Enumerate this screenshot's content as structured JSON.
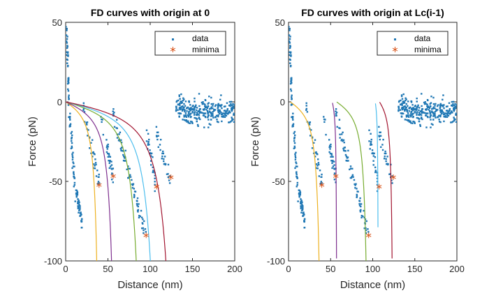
{
  "chart_data": [
    {
      "type": "scatter",
      "title": "FD curves with origin at 0",
      "xlabel": "Distance (nm)",
      "ylabel": "Force (pN)",
      "xlim": [
        0,
        200
      ],
      "ylim": [
        -100,
        50
      ],
      "xticks": [
        0,
        50,
        100,
        150,
        200
      ],
      "yticks": [
        50,
        0,
        -50,
        -100
      ],
      "grid": false,
      "legend": {
        "position": "top-right",
        "entries": [
          "data",
          "minima"
        ]
      },
      "series": [
        {
          "name": "data",
          "marker": "dot",
          "color": "#1f77b4"
        },
        {
          "name": "minima",
          "marker": "asterisk",
          "color": "#d95319",
          "x": [
            39.5,
            56.2,
            95.2,
            107.6,
            124.5
          ],
          "y": [
            -52.3,
            -46.7,
            -83.9,
            -53.3,
            -47.4
          ]
        }
      ],
      "model_curves": [
        {
          "color": "#edb120",
          "origin": 0,
          "lc": 44
        },
        {
          "color": "#7e2f8e",
          "origin": 0,
          "lc": 65
        },
        {
          "color": "#77ac30",
          "origin": 0,
          "lc": 100
        },
        {
          "color": "#4dbeee",
          "origin": 0,
          "lc": 120
        },
        {
          "color": "#a2142f",
          "origin": 0,
          "lc": 142
        }
      ]
    },
    {
      "type": "scatter",
      "title": "FD curves with origin at Lc(i-1)",
      "xlabel": "Distance (nm)",
      "ylabel": "Force (pN)",
      "xlim": [
        0,
        200
      ],
      "ylim": [
        -100,
        50
      ],
      "xticks": [
        0,
        50,
        100,
        150,
        200
      ],
      "yticks": [
        50,
        0,
        -50,
        -100
      ],
      "grid": false,
      "legend": {
        "position": "top-right",
        "entries": [
          "data",
          "minima"
        ]
      },
      "series": [
        {
          "name": "data",
          "marker": "dot",
          "color": "#1f77b4"
        },
        {
          "name": "minima",
          "marker": "asterisk",
          "color": "#d95319",
          "x": [
            39.5,
            56.2,
            95.2,
            107.6,
            124.5
          ],
          "y": [
            -52.3,
            -46.7,
            -83.9,
            -53.3,
            -47.4
          ]
        }
      ],
      "model_curves": [
        {
          "color": "#edb120",
          "origin": 2,
          "lc": 43
        },
        {
          "color": "#7e2f8e",
          "origin": 52,
          "lc": 58
        },
        {
          "color": "#77ac30",
          "origin": 57,
          "lc": 99
        },
        {
          "color": "#4dbeee",
          "origin": 103,
          "lc": 107
        },
        {
          "color": "#a2142f",
          "origin": 108,
          "lc": 126
        }
      ]
    }
  ],
  "data_cloud": {
    "seed": 12345,
    "segments": [
      {
        "x0": 1,
        "x1": 4,
        "n": 42,
        "ytop": 48,
        "ybot": -5,
        "jitter": 3
      },
      {
        "x0": 4,
        "x1": 12,
        "n": 45,
        "ytop": -5,
        "ybot": -60,
        "jitter": 6
      },
      {
        "x0": 12,
        "x1": 20,
        "n": 45,
        "ytop": -55,
        "ybot": -78,
        "jitter": 4
      },
      {
        "x0": 20,
        "x1": 40,
        "n": 40,
        "ytop": -2,
        "ybot": -52,
        "jitter": 6
      },
      {
        "x0": 40,
        "x1": 56,
        "n": 35,
        "ytop": -5,
        "ybot": -47,
        "jitter": 5
      },
      {
        "x0": 56,
        "x1": 95,
        "n": 80,
        "ytop": -8,
        "ybot": -84,
        "jitter": 5
      },
      {
        "x0": 95,
        "x1": 107,
        "n": 28,
        "ytop": -18,
        "ybot": -54,
        "jitter": 5
      },
      {
        "x0": 107,
        "x1": 124,
        "n": 30,
        "ytop": -18,
        "ybot": -48,
        "jitter": 5
      }
    ],
    "noise": {
      "x0": 130,
      "x1": 203,
      "n": 330,
      "ymean": -6,
      "ysd": 4
    }
  }
}
